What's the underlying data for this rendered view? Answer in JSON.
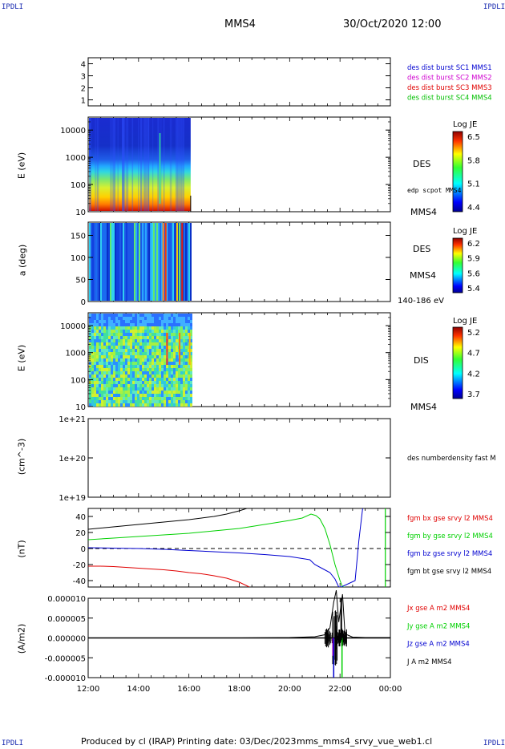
{
  "corner_label": "IPDLI",
  "header": {
    "spacecraft": "MMS4",
    "datetime": "30/Oct/2020 12:00"
  },
  "footer": {
    "produced_by": "Produced by cl (IRAP)",
    "printing_date": "Printing date: 03/Dec/2023",
    "filename": "mms_mms4_srvy_vue_web1.cl"
  },
  "colors": {
    "mms1": "#0000d0",
    "mms2": "#d000d0",
    "mms3": "#e00000",
    "mms4": "#00c000",
    "x": "#e00000",
    "y": "#00d000",
    "z": "#0000d0",
    "t": "#000000"
  },
  "chart_data": [
    {
      "type": "line",
      "id": "burst",
      "ylim": [
        0.5,
        4.5
      ],
      "yticks": [
        "1",
        "2",
        "3",
        "4"
      ],
      "right_labels": [
        {
          "text": "des dist burst SC1 MMS1",
          "color": "#0000d0"
        },
        {
          "text": "des dist burst SC2 MMS2",
          "color": "#d000d0"
        },
        {
          "text": "des dist burst SC3 MMS3",
          "color": "#e00000"
        },
        {
          "text": "des dist burst SC4 MMS4",
          "color": "#00c000"
        }
      ]
    },
    {
      "type": "heatmap",
      "id": "des_energy",
      "ylabel": "E (eV)",
      "yscale": "log",
      "ylim": [
        10,
        30000
      ],
      "yticks": [
        "10",
        "100",
        "1000",
        "10000"
      ],
      "instrument": "DES",
      "extra_label": "edp scpot MMS4",
      "bottom_label": "MMS4",
      "colorbar": {
        "title": "Log JE",
        "ticks": [
          "6.5",
          "5.8",
          "5.1",
          "4.4"
        ],
        "range": [
          4.4,
          6.5
        ]
      },
      "data_extent_hours": [
        12,
        16.07
      ]
    },
    {
      "type": "heatmap",
      "id": "des_pitch",
      "ylabel": "a (deg)",
      "ylim": [
        0,
        180
      ],
      "yticks": [
        "0",
        "50",
        "100",
        "150"
      ],
      "instrument": "DES",
      "extra_label": "MMS4",
      "bottom_label": "140-186 eV",
      "colorbar": {
        "title": "Log JE",
        "ticks": [
          "6.2",
          "5.9",
          "5.6",
          "5.4"
        ],
        "range": [
          5.4,
          6.2
        ]
      },
      "data_extent_hours": [
        12,
        16.07
      ]
    },
    {
      "type": "heatmap",
      "id": "dis_energy",
      "ylabel": "E (eV)",
      "yscale": "log",
      "ylim": [
        10,
        30000
      ],
      "yticks": [
        "10",
        "100",
        "1000",
        "10000"
      ],
      "instrument": "DIS",
      "bottom_label": "MMS4",
      "colorbar": {
        "title": "Log JE",
        "ticks": [
          "5.2",
          "4.7",
          "4.2",
          "3.7"
        ],
        "range": [
          3.7,
          5.2
        ]
      },
      "data_extent_hours": [
        12,
        16.07
      ]
    },
    {
      "type": "line",
      "id": "density",
      "ylabel": "(cm^-3)",
      "yscale": "log",
      "yticks": [
        "1e+19",
        "1e+20",
        "1e+21"
      ],
      "right_labels": [
        {
          "text": "des numberdensity fast M",
          "color": "#000000"
        }
      ]
    },
    {
      "type": "line",
      "id": "bfield",
      "ylabel": "(nT)",
      "ylim": [
        -48,
        50
      ],
      "yticks": [
        "-40",
        "-20",
        "0",
        "20",
        "40"
      ],
      "right_labels": [
        {
          "text": "fgm bx gse srvy l2 MMS4",
          "color": "#e00000"
        },
        {
          "text": "fgm by gse srvy l2 MMS4",
          "color": "#00d000"
        },
        {
          "text": "fgm bz gse srvy l2 MMS4",
          "color": "#0000d0"
        },
        {
          "text": "fgm bt gse srvy l2 MMS4",
          "color": "#000000"
        }
      ],
      "series": [
        {
          "name": "fgm bx gse srvy l2 MMS4",
          "color": "#e00000",
          "x": [
            12,
            12.5,
            13,
            13.5,
            14,
            14.5,
            15,
            15.5,
            16,
            16.5,
            17,
            17.5,
            18,
            18.4
          ],
          "y": [
            -22,
            -22,
            -22.5,
            -23.5,
            -24.5,
            -25.5,
            -26.5,
            -28,
            -30,
            -31.5,
            -34,
            -37,
            -42,
            -48
          ]
        },
        {
          "name": "fgm by gse srvy l2 MMS4",
          "color": "#00d000",
          "x": [
            12,
            13,
            14,
            15,
            16,
            17,
            18,
            19,
            20,
            20.5,
            20.85,
            21.05,
            21.2,
            21.4,
            21.6,
            21.8,
            22.0,
            22.1,
            22.2
          ],
          "y": [
            11,
            13,
            15,
            17,
            19,
            22,
            25,
            30,
            35,
            38,
            43,
            41,
            37,
            25,
            5,
            -20,
            -40,
            -48,
            -48
          ]
        },
        {
          "name": "fgm bz gse srvy l2 MMS4",
          "color": "#0000d0",
          "x": [
            12,
            13,
            14,
            15,
            16,
            17,
            18,
            19,
            20,
            20.8,
            21.0,
            21.3,
            21.6,
            21.8,
            21.95,
            22.05,
            22.6,
            22.75,
            22.9
          ],
          "y": [
            1,
            0.5,
            0,
            -1,
            -2.5,
            -4,
            -5.5,
            -7.5,
            -10,
            -14,
            -20,
            -25,
            -30,
            -38,
            -48,
            -48,
            -40,
            10,
            50
          ]
        },
        {
          "name": "fgm bt gse srvy l2 MMS4",
          "color": "#000000",
          "x": [
            12,
            13,
            14,
            15,
            16,
            16.5,
            17,
            17.5,
            18,
            18.3
          ],
          "y": [
            24,
            27,
            30,
            33,
            36,
            38,
            40,
            43,
            47,
            50
          ]
        }
      ]
    },
    {
      "type": "line",
      "id": "current",
      "ylabel": "(A/m2)",
      "ylim": [
        -1e-05,
        1e-05
      ],
      "yticks": [
        "-0.000010",
        "-0.000005",
        "0.000000",
        "0.000005",
        "0.000010"
      ],
      "right_labels": [
        {
          "text": "Jx gse A m2 MMS4",
          "color": "#e00000"
        },
        {
          "text": "Jy gse A m2 MMS4",
          "color": "#00d000"
        },
        {
          "text": "Jz gse A m2 MMS4",
          "color": "#0000d0"
        },
        {
          "text": "J A m2 MMS4",
          "color": "#000000"
        }
      ],
      "series": [
        {
          "name": "J A m2 MMS4",
          "color": "#000000",
          "x": [
            12,
            16,
            18,
            20,
            21,
            21.4,
            21.6,
            21.75,
            21.85,
            21.95,
            22.1,
            22.2,
            22.5,
            23,
            24
          ],
          "y": [
            0,
            0,
            0,
            1e-07,
            3e-07,
            8e-07,
            2.5e-06,
            9e-06,
            1.2e-05,
            4e-06,
            1.1e-05,
            1e-06,
            2e-07,
            1e-07,
            1e-07
          ]
        }
      ],
      "xticks": [
        "12:00",
        "14:00",
        "16:00",
        "18:00",
        "20:00",
        "22:00",
        "00:00"
      ],
      "xlim_hours": [
        12,
        24
      ]
    }
  ]
}
